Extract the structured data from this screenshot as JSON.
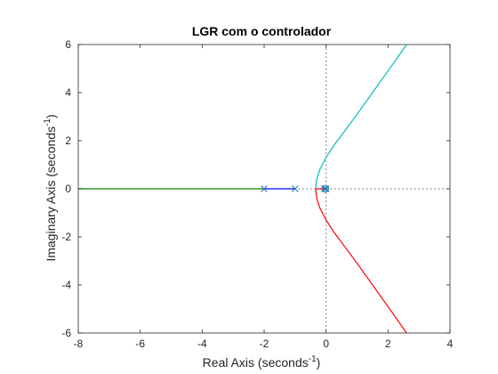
{
  "chart_data": {
    "type": "line",
    "title": "LGR com o controlador",
    "xlabel": {
      "main": "Real Axis (seconds",
      "sup": "-1",
      "close": ")"
    },
    "ylabel": {
      "main": "Imaginary Axis (seconds",
      "sup": "-1",
      "close": ")"
    },
    "xlim": [
      -8,
      4
    ],
    "ylim": [
      -6,
      6
    ],
    "x_ticks": [
      -8,
      -6,
      -4,
      -2,
      0,
      2,
      4
    ],
    "y_ticks": [
      -6,
      -4,
      -2,
      0,
      2,
      4,
      6
    ],
    "grid": false,
    "guide_lines": [
      "x=0",
      "y=0"
    ],
    "colors": {
      "axes": "#262626",
      "guide": "#595959",
      "marker": "#1f77b4",
      "blue_branch": "#0000ff",
      "green_branch": "#008000",
      "red_branch": "#ff0000",
      "cyan_branch": "#00bfbf"
    },
    "poles": [
      {
        "x": -2,
        "y": 0,
        "marker": "x"
      },
      {
        "x": -1,
        "y": 0,
        "marker": "x"
      },
      {
        "x": -0.05,
        "y": 0,
        "marker": "x"
      },
      {
        "x": 0,
        "y": 0,
        "marker": "x"
      }
    ],
    "zeros": [
      {
        "x": -0.03,
        "y": 0,
        "marker": "o"
      }
    ],
    "series": [
      {
        "color": "#008000",
        "points": [
          [
            -2,
            0
          ],
          [
            -8,
            0
          ]
        ]
      },
      {
        "color": "#0000ff",
        "points": [
          [
            -1,
            0
          ],
          [
            -2,
            0
          ]
        ]
      },
      {
        "color": "#ff0000",
        "points": [
          [
            -0.05,
            0
          ],
          [
            -0.2,
            0
          ],
          [
            -0.34,
            0
          ],
          [
            -0.3,
            -0.4
          ],
          [
            -0.2,
            -0.8
          ],
          [
            0,
            -1.3
          ],
          [
            0.25,
            -1.8
          ],
          [
            0.6,
            -2.4
          ],
          [
            1,
            -3.1
          ],
          [
            1.5,
            -4.0
          ],
          [
            2,
            -4.9
          ],
          [
            2.6,
            -6
          ]
        ]
      },
      {
        "color": "#00bfbf",
        "points": [
          [
            -0.34,
            0
          ],
          [
            -0.3,
            0.4
          ],
          [
            -0.2,
            0.8
          ],
          [
            0,
            1.3
          ],
          [
            0.25,
            1.8
          ],
          [
            0.6,
            2.4
          ],
          [
            1,
            3.1
          ],
          [
            1.5,
            4.0
          ],
          [
            2,
            4.9
          ],
          [
            2.6,
            6
          ]
        ]
      }
    ]
  }
}
